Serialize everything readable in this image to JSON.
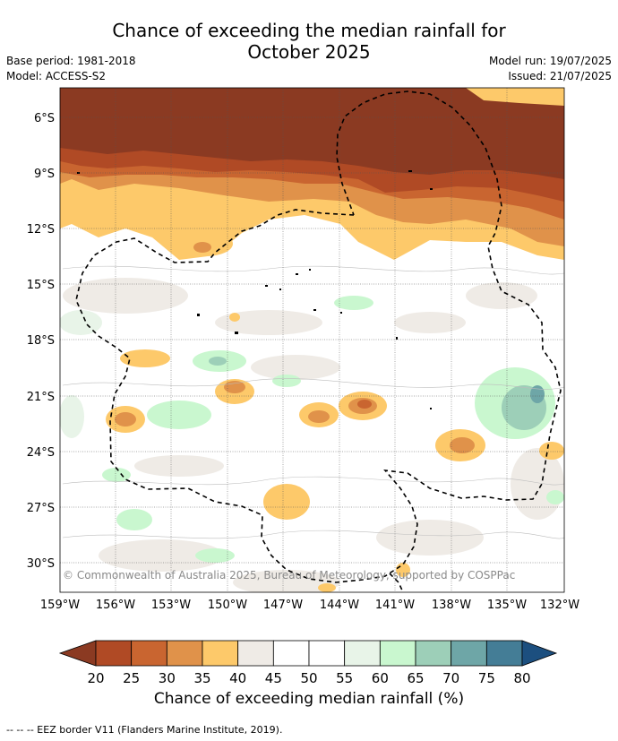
{
  "title_line1": "Chance of exceeding the median rainfall for",
  "title_line2": "October 2025",
  "base_period": "Base period: 1981-2018",
  "model": "Model: ACCESS-S2",
  "model_run": "Model run: 19/07/2025",
  "issued": "Issued: 21/07/2025",
  "copyright": "© Commonwealth of Australia 2025, Bureau of Meteorology, supported by COSPPac",
  "lat_labels": [
    "6°S",
    "9°S",
    "12°S",
    "15°S",
    "18°S",
    "21°S",
    "24°S",
    "27°S",
    "30°S"
  ],
  "lon_labels": [
    "159°W",
    "156°W",
    "153°W",
    "150°W",
    "147°W",
    "144°W",
    "141°W",
    "138°W",
    "135°W",
    "132°W"
  ],
  "colorbar": {
    "title": "Chance of exceeding median rainfall (%)",
    "labels": [
      "20",
      "25",
      "30",
      "35",
      "40",
      "45",
      "50",
      "55",
      "60",
      "65",
      "70",
      "75",
      "80"
    ],
    "colors": [
      "#8b3a22",
      "#b04a25",
      "#c96530",
      "#e0924a",
      "#fdc96a",
      "#efebe6",
      "#ffffff",
      "#ffffff",
      "#e8f4e8",
      "#c9f7cf",
      "#9dcfb8",
      "#6ea6a7",
      "#447d96",
      "#1c4f7f"
    ]
  },
  "footnote": "--  --  -- EEZ border V11 (Flanders Marine Institute, 2019)."
}
